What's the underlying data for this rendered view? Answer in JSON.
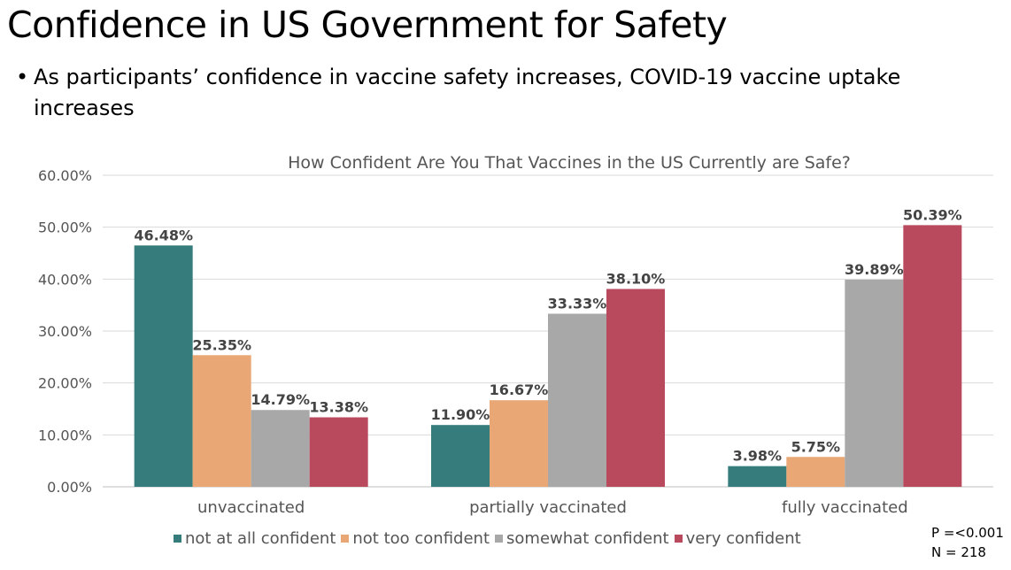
{
  "slide": {
    "title": "Confidence in US Government for Safety",
    "bullet": "As participants’ confidence in vaccine safety increases, COVID-19 vaccine uptake increases",
    "p_value": "P =<0.001",
    "n": "N = 218"
  },
  "chart_data": {
    "type": "bar",
    "title": "How Confident Are You That Vaccines in the US Currently are Safe?",
    "categories": [
      "unvaccinated",
      "partially vaccinated",
      "fully vaccinated"
    ],
    "series": [
      {
        "name": "not at all confident",
        "color": "#367c7c",
        "values": [
          46.48,
          11.9,
          3.98
        ],
        "labels": [
          "46.48%",
          "11.90%",
          "3.98%"
        ]
      },
      {
        "name": "not too confident",
        "color": "#e8a774",
        "values": [
          25.35,
          16.67,
          5.75
        ],
        "labels": [
          "25.35%",
          "16.67%",
          "5.75%"
        ]
      },
      {
        "name": "somewhat confident",
        "color": "#a8a8a8",
        "values": [
          14.79,
          33.33,
          39.89
        ],
        "labels": [
          "14.79%",
          "33.33%",
          "39.89%"
        ]
      },
      {
        "name": "very confident",
        "color": "#b94a5e",
        "values": [
          13.38,
          38.1,
          50.39
        ],
        "labels": [
          "13.38%",
          "38.10%",
          "50.39%"
        ]
      }
    ],
    "yticks": [
      "0.00%",
      "10.00%",
      "20.00%",
      "30.00%",
      "40.00%",
      "50.00%",
      "60.00%"
    ],
    "ylim": [
      0,
      60
    ],
    "grid": true,
    "legend_position": "bottom"
  }
}
